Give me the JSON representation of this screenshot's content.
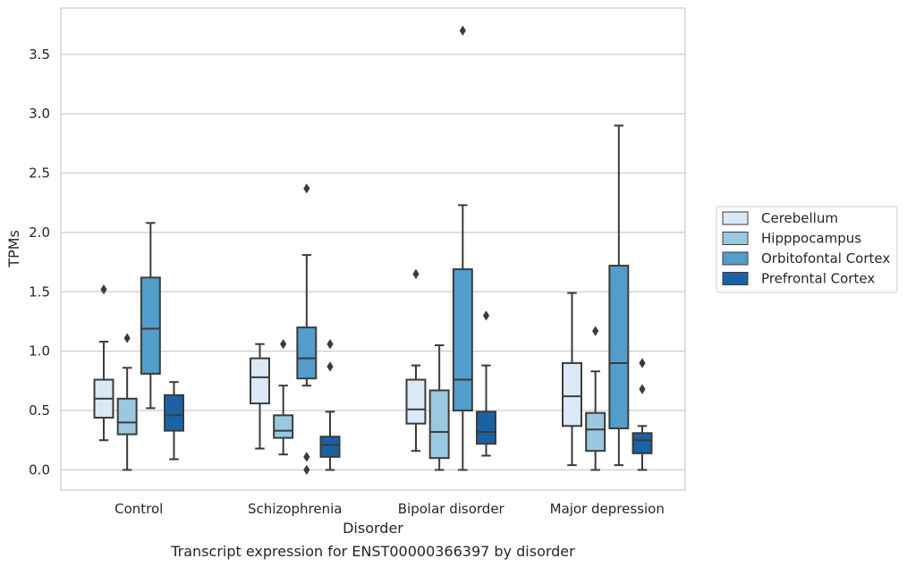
{
  "chart_data": {
    "type": "box",
    "title": "Transcript expression for ENST00000366397 by disorder",
    "xlabel": "Disorder",
    "ylabel": "TPMs",
    "ylim": [
      -0.17,
      3.89
    ],
    "yticks": [
      "0.0",
      "0.5",
      "1.0",
      "1.5",
      "2.0",
      "2.5",
      "3.0",
      "3.5"
    ],
    "grid": "horizontal",
    "legend_position": "right",
    "categories": [
      "Control",
      "Schizophrenia",
      "Bipolar disorder",
      "Major depression"
    ],
    "series": [
      {
        "name": "Cerebellum",
        "color": "#dbe9f6",
        "boxes": [
          {
            "whislo": 0.25,
            "q1": 0.44,
            "med": 0.6,
            "q3": 0.76,
            "whishi": 1.08,
            "fliers": [
              1.52
            ]
          },
          {
            "whislo": 0.18,
            "q1": 0.56,
            "med": 0.78,
            "q3": 0.94,
            "whishi": 1.06,
            "fliers": []
          },
          {
            "whislo": 0.16,
            "q1": 0.39,
            "med": 0.51,
            "q3": 0.76,
            "whishi": 0.88,
            "fliers": [
              1.65
            ]
          },
          {
            "whislo": 0.04,
            "q1": 0.37,
            "med": 0.62,
            "q3": 0.9,
            "whishi": 1.49,
            "fliers": []
          }
        ]
      },
      {
        "name": "Hipppocampus",
        "color": "#9ac8e0",
        "boxes": [
          {
            "whislo": 0.0,
            "q1": 0.3,
            "med": 0.4,
            "q3": 0.6,
            "whishi": 0.86,
            "fliers": [
              1.11
            ]
          },
          {
            "whislo": 0.13,
            "q1": 0.27,
            "med": 0.33,
            "q3": 0.46,
            "whishi": 0.71,
            "fliers": [
              1.06
            ]
          },
          {
            "whislo": 0.0,
            "q1": 0.1,
            "med": 0.32,
            "q3": 0.67,
            "whishi": 1.05,
            "fliers": []
          },
          {
            "whislo": 0.0,
            "q1": 0.16,
            "med": 0.34,
            "q3": 0.48,
            "whishi": 0.83,
            "fliers": [
              1.17
            ]
          }
        ]
      },
      {
        "name": "Orbitofontal Cortex",
        "color": "#529dcc",
        "boxes": [
          {
            "whislo": 0.52,
            "q1": 0.81,
            "med": 1.19,
            "q3": 1.62,
            "whishi": 2.08,
            "fliers": []
          },
          {
            "whislo": 0.71,
            "q1": 0.77,
            "med": 0.94,
            "q3": 1.2,
            "whishi": 1.81,
            "fliers": [
              2.37,
              0.11,
              0.0
            ]
          },
          {
            "whislo": 0.0,
            "q1": 0.5,
            "med": 0.76,
            "q3": 1.69,
            "whishi": 2.23,
            "fliers": [
              3.7
            ]
          },
          {
            "whislo": 0.04,
            "q1": 0.35,
            "med": 0.9,
            "q3": 1.72,
            "whishi": 2.9,
            "fliers": []
          }
        ]
      },
      {
        "name": "Prefrontal Cortex",
        "color": "#1b62a5",
        "boxes": [
          {
            "whislo": 0.09,
            "q1": 0.33,
            "med": 0.46,
            "q3": 0.63,
            "whishi": 0.74,
            "fliers": []
          },
          {
            "whislo": 0.0,
            "q1": 0.11,
            "med": 0.21,
            "q3": 0.28,
            "whishi": 0.49,
            "fliers": [
              1.06,
              0.87
            ]
          },
          {
            "whislo": 0.12,
            "q1": 0.22,
            "med": 0.32,
            "q3": 0.49,
            "whishi": 0.88,
            "fliers": [
              1.3
            ]
          },
          {
            "whislo": 0.0,
            "q1": 0.14,
            "med": 0.25,
            "q3": 0.31,
            "whishi": 0.37,
            "fliers": [
              0.9,
              0.68
            ]
          }
        ]
      }
    ]
  }
}
